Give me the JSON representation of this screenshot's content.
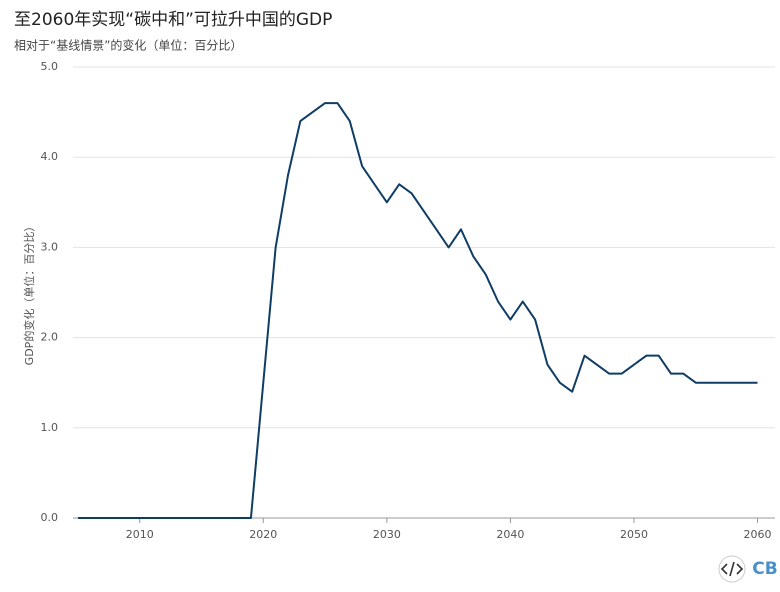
{
  "chart_data": {
    "type": "line",
    "title": "至2060年实现“碳中和”可拉升中国的GDP",
    "subtitle": "相对于“基线情景”的变化（单位：百分比）",
    "y_label": "GDP的变化（单位：百分比）",
    "logo": "CB",
    "x": [
      2005,
      2006,
      2007,
      2008,
      2009,
      2010,
      2011,
      2012,
      2013,
      2014,
      2015,
      2016,
      2017,
      2018,
      2019,
      2020,
      2021,
      2022,
      2023,
      2024,
      2025,
      2026,
      2027,
      2028,
      2029,
      2030,
      2031,
      2032,
      2033,
      2034,
      2035,
      2036,
      2037,
      2038,
      2039,
      2040,
      2041,
      2042,
      2043,
      2044,
      2045,
      2046,
      2047,
      2048,
      2049,
      2050,
      2051,
      2052,
      2053,
      2054,
      2055,
      2056,
      2057,
      2058,
      2059,
      2060
    ],
    "series": [
      {
        "color": "#0f3d66",
        "values": [
          0,
          0,
          0,
          0,
          0,
          0,
          0,
          0,
          0,
          0,
          0,
          0,
          0,
          0,
          0,
          1.5,
          3.0,
          3.8,
          4.4,
          4.5,
          4.6,
          4.6,
          4.4,
          3.9,
          3.7,
          3.5,
          3.7,
          3.6,
          3.4,
          3.2,
          3.0,
          3.2,
          2.9,
          2.7,
          2.4,
          2.2,
          2.4,
          2.2,
          1.7,
          1.5,
          1.4,
          1.8,
          1.7,
          1.6,
          1.6,
          1.7,
          1.8,
          1.8,
          1.6,
          1.6,
          1.5,
          1.5,
          1.5,
          1.5,
          1.5,
          1.5
        ]
      }
    ],
    "xlim": [
      2004.6,
      2060.2
    ],
    "xticks": [
      2010,
      2020,
      2030,
      2040,
      2050,
      2060
    ],
    "ylim": [
      0,
      5
    ],
    "yticks": [
      {
        "value": 0,
        "label": "0.0"
      },
      {
        "value": 1,
        "label": "1.0"
      },
      {
        "value": 2,
        "label": "2.0"
      },
      {
        "value": 3,
        "label": "3.0"
      },
      {
        "value": 4,
        "label": "4.0"
      },
      {
        "value": 5,
        "label": "5.0"
      }
    ],
    "grid": true
  }
}
